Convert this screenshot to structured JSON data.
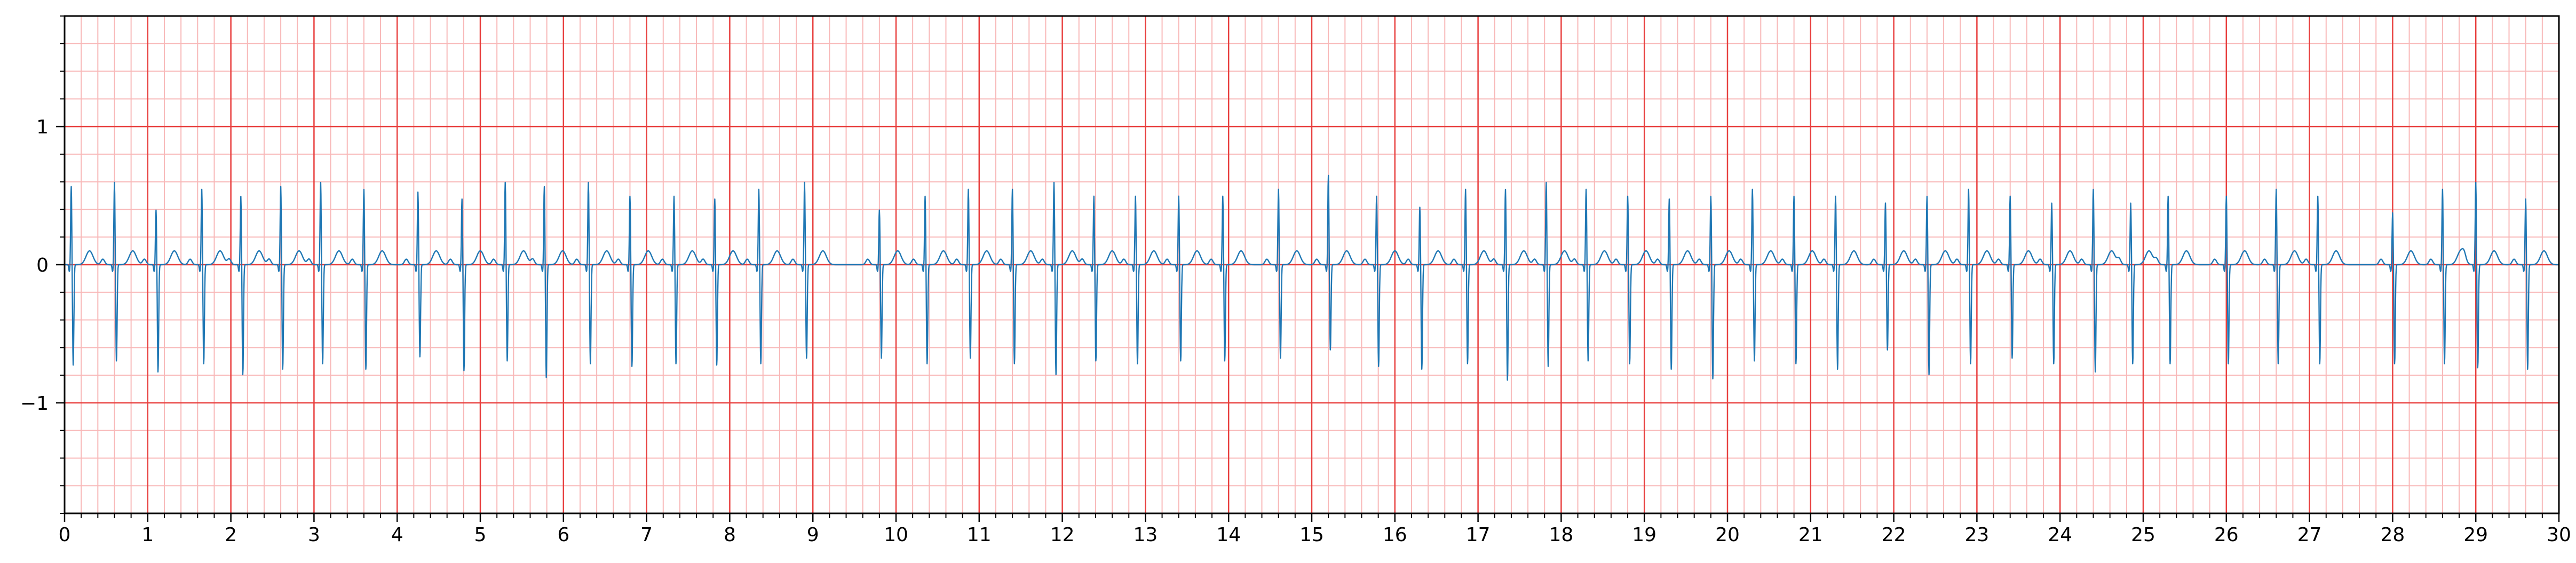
{
  "chart_data": {
    "type": "line",
    "title": "",
    "xlabel": "",
    "ylabel": "",
    "xlim": [
      0,
      30
    ],
    "ylim": [
      -1.8,
      1.8
    ],
    "x_ticks": [
      0,
      1,
      2,
      3,
      4,
      5,
      6,
      7,
      8,
      9,
      10,
      11,
      12,
      13,
      14,
      15,
      16,
      17,
      18,
      19,
      20,
      21,
      22,
      23,
      24,
      25,
      26,
      27,
      28,
      29,
      30
    ],
    "x_tick_labels": [
      "0",
      "1",
      "2",
      "3",
      "4",
      "5",
      "6",
      "7",
      "8",
      "9",
      "10",
      "11",
      "12",
      "13",
      "14",
      "15",
      "16",
      "17",
      "18",
      "19",
      "20",
      "21",
      "22",
      "23",
      "24",
      "25",
      "26",
      "27",
      "28",
      "29",
      "30"
    ],
    "y_ticks": [
      -1,
      0,
      1
    ],
    "y_tick_labels": [
      "−1",
      "0",
      "1"
    ],
    "grid": {
      "major": {
        "x_step": 1,
        "y_step": 1,
        "color": "#e8403f"
      },
      "minor": {
        "x_step": 0.2,
        "y_step": 0.2,
        "color": "#f8b8b8"
      }
    },
    "legend": "none",
    "series": [
      {
        "color": "#1f77b4",
        "beats": {
          "times": [
            0.08,
            0.6,
            1.1,
            1.65,
            2.12,
            2.6,
            3.08,
            3.6,
            4.25,
            4.78,
            5.3,
            5.77,
            6.3,
            6.8,
            7.33,
            7.82,
            8.35,
            8.9,
            9.8,
            10.35,
            10.87,
            11.4,
            11.9,
            12.38,
            12.88,
            13.4,
            13.93,
            14.6,
            15.2,
            15.78,
            16.3,
            16.85,
            17.33,
            17.82,
            18.3,
            18.8,
            19.3,
            19.8,
            20.3,
            20.8,
            21.3,
            21.9,
            22.4,
            22.9,
            23.4,
            23.9,
            24.4,
            24.85,
            25.3,
            26.0,
            26.6,
            27.1,
            28.0,
            28.6,
            29.0,
            29.6
          ],
          "r_amplitudes": [
            0.57,
            0.6,
            0.4,
            0.55,
            0.5,
            0.57,
            0.6,
            0.55,
            0.53,
            0.48,
            0.6,
            0.57,
            0.6,
            0.5,
            0.5,
            0.48,
            0.55,
            0.6,
            0.4,
            0.5,
            0.55,
            0.55,
            0.6,
            0.5,
            0.5,
            0.5,
            0.5,
            0.55,
            0.65,
            0.5,
            0.42,
            0.55,
            0.55,
            0.6,
            0.55,
            0.5,
            0.48,
            0.5,
            0.55,
            0.5,
            0.5,
            0.45,
            0.5,
            0.55,
            0.5,
            0.45,
            0.55,
            0.45,
            0.5,
            0.5,
            0.55,
            0.5,
            0.38,
            0.55,
            0.6,
            0.48
          ],
          "s_amplitudes": [
            -0.73,
            -0.7,
            -0.78,
            -0.72,
            -0.8,
            -0.76,
            -0.72,
            -0.76,
            -0.67,
            -0.77,
            -0.7,
            -0.82,
            -0.72,
            -0.74,
            -0.72,
            -0.73,
            -0.72,
            -0.68,
            -0.68,
            -0.72,
            -0.68,
            -0.72,
            -0.8,
            -0.7,
            -0.72,
            -0.7,
            -0.7,
            -0.68,
            -0.62,
            -0.74,
            -0.76,
            -0.72,
            -0.84,
            -0.74,
            -0.7,
            -0.72,
            -0.76,
            -0.83,
            -0.7,
            -0.72,
            -0.76,
            -0.62,
            -0.8,
            -0.72,
            -0.68,
            -0.72,
            -0.78,
            -0.72,
            -0.72,
            -0.72,
            -0.72,
            -0.72,
            -0.72,
            -0.72,
            -0.75,
            -0.76
          ],
          "t_amplitude": 0.1,
          "q_amplitude": -0.05
        }
      }
    ]
  }
}
